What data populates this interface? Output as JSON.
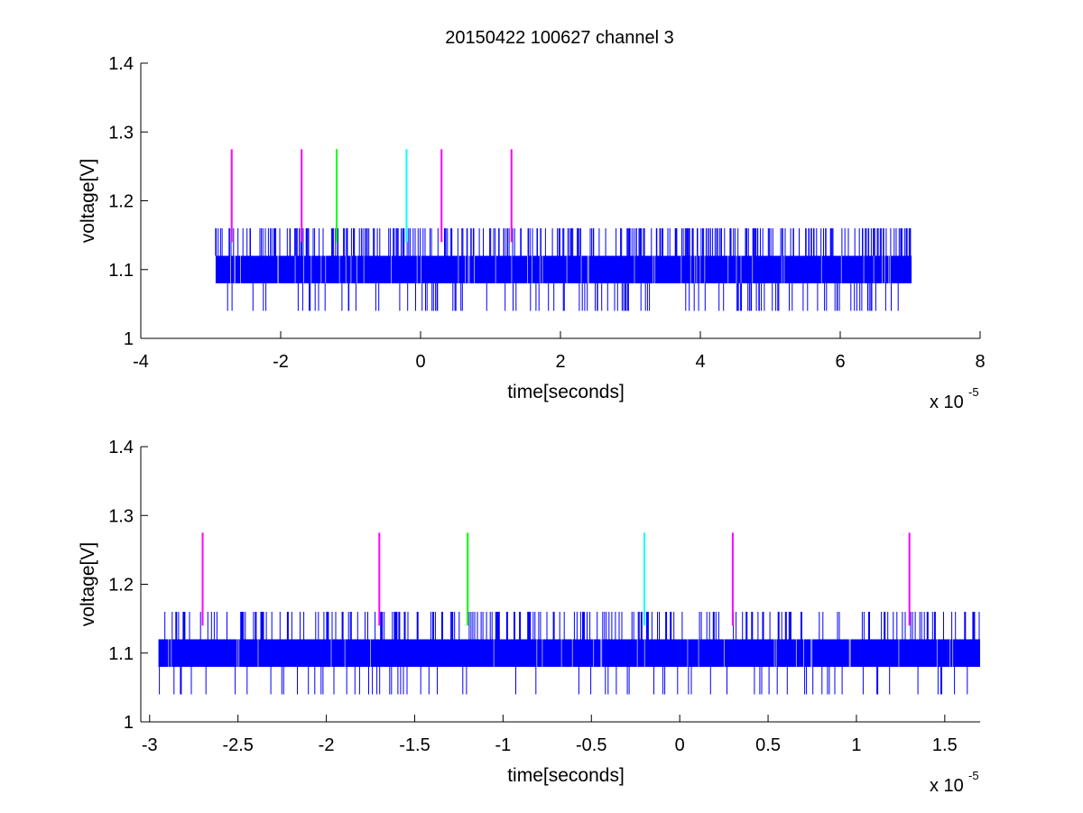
{
  "figure": {
    "title": "20150422 100627 channel 3"
  },
  "colors": {
    "signal": "#0000ff",
    "marker_magenta": "#ff00ff",
    "marker_green": "#00ff00",
    "marker_cyan": "#00ffff",
    "axis": "#000000"
  },
  "chart_data": [
    {
      "type": "line",
      "name": "upper-panel",
      "xlabel": "time[seconds]",
      "ylabel": "voltage[V]",
      "x_exponent_base": "x 10",
      "x_exponent_power": "-5",
      "xlim": [
        -4,
        8
      ],
      "ylim": [
        1,
        1.4
      ],
      "xticks": [
        -4,
        -2,
        0,
        2,
        4,
        6,
        8
      ],
      "xtick_labels": [
        "-4",
        "-2",
        "0",
        "2",
        "4",
        "6",
        "8"
      ],
      "yticks": [
        1,
        1.1,
        1.2,
        1.3,
        1.4
      ],
      "ytick_labels": [
        "1",
        "1.1",
        "1.2",
        "1.3",
        "1.4"
      ],
      "signal": {
        "x_start": -2.93,
        "x_end": 7.02,
        "baseline_band": [
          1.08,
          1.12
        ],
        "spike_levels": [
          1.04,
          1.16
        ],
        "sample_count": 1400
      },
      "markers": [
        {
          "x": -2.7,
          "y_range": [
            1.14,
            1.275
          ],
          "color": "magenta"
        },
        {
          "x": -1.7,
          "y_range": [
            1.14,
            1.275
          ],
          "color": "magenta"
        },
        {
          "x": -1.2,
          "y_range": [
            1.14,
            1.275
          ],
          "color": "green"
        },
        {
          "x": -0.2,
          "y_range": [
            1.14,
            1.275
          ],
          "color": "cyan"
        },
        {
          "x": 0.3,
          "y_range": [
            1.14,
            1.275
          ],
          "color": "magenta"
        },
        {
          "x": 1.3,
          "y_range": [
            1.14,
            1.275
          ],
          "color": "magenta"
        }
      ],
      "grid": false
    },
    {
      "type": "line",
      "name": "lower-panel",
      "xlabel": "time[seconds]",
      "ylabel": "voltage[V]",
      "x_exponent_base": "x 10",
      "x_exponent_power": "-5",
      "xlim": [
        -3.05,
        1.7
      ],
      "ylim": [
        1,
        1.4
      ],
      "xticks": [
        -3,
        -2.5,
        -2,
        -1.5,
        -1,
        -0.5,
        0,
        0.5,
        1,
        1.5
      ],
      "xtick_labels": [
        "-3",
        "-2.5",
        "-2",
        "-1.5",
        "-1",
        "-0.5",
        "0",
        "0.5",
        "1",
        "1.5"
      ],
      "yticks": [
        1,
        1.1,
        1.2,
        1.3,
        1.4
      ],
      "ytick_labels": [
        "1",
        "1.1",
        "1.2",
        "1.3",
        "1.4"
      ],
      "signal": {
        "x_start": -2.95,
        "x_end": 1.7,
        "baseline_band": [
          1.08,
          1.12
        ],
        "spike_levels": [
          1.04,
          1.16
        ],
        "sample_count": 900
      },
      "markers": [
        {
          "x": -2.7,
          "y_range": [
            1.14,
            1.275
          ],
          "color": "magenta"
        },
        {
          "x": -1.7,
          "y_range": [
            1.14,
            1.275
          ],
          "color": "magenta"
        },
        {
          "x": -1.2,
          "y_range": [
            1.14,
            1.275
          ],
          "color": "green"
        },
        {
          "x": -0.2,
          "y_range": [
            1.14,
            1.275
          ],
          "color": "cyan"
        },
        {
          "x": 0.3,
          "y_range": [
            1.14,
            1.275
          ],
          "color": "magenta"
        },
        {
          "x": 1.3,
          "y_range": [
            1.14,
            1.275
          ],
          "color": "magenta"
        }
      ],
      "grid": false
    }
  ]
}
